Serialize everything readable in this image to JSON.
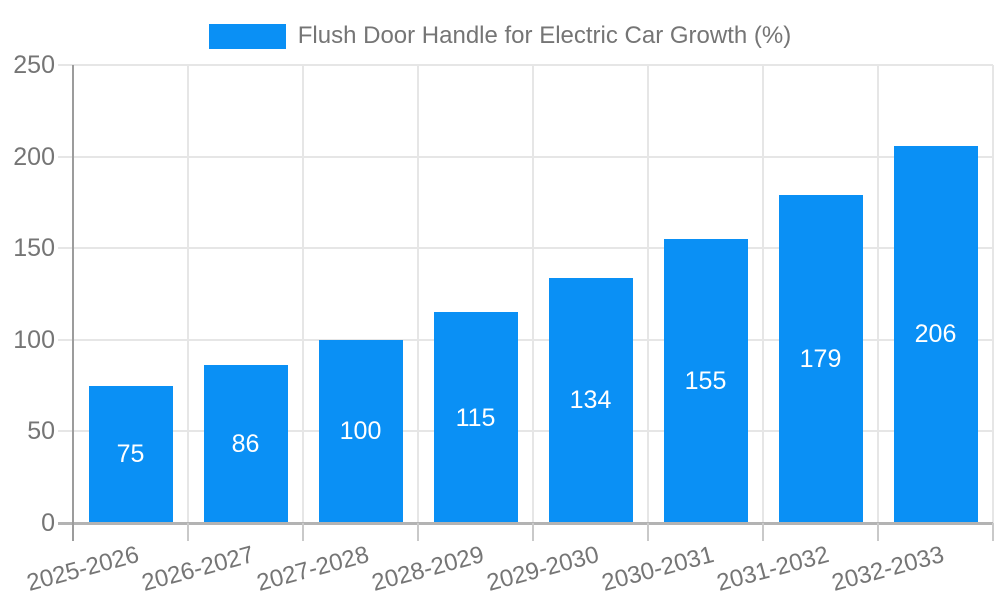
{
  "chart_data": {
    "type": "bar",
    "title": "Flush Door Handle for Electric Car Growth (%)",
    "categories": [
      "2025-2026",
      "2026-2027",
      "2027-2028",
      "2028-2029",
      "2029-2030",
      "2030-2031",
      "2031-2032",
      "2032-2033"
    ],
    "values": [
      75,
      86,
      100,
      115,
      134,
      155,
      179,
      206
    ],
    "xlabel": "",
    "ylabel": "",
    "ylim": [
      0,
      250
    ],
    "yticks": [
      0,
      50,
      100,
      150,
      200,
      250
    ],
    "grid": true,
    "legend_position": "top",
    "bar_labels_inside": true
  },
  "legend": {
    "label": "Flush Door Handle for Electric Car Growth (%)"
  },
  "colors": {
    "bar": "#0a90f5",
    "axis_text": "#757575",
    "value_text": "#ffffff",
    "gridline": "#e6e6e6",
    "baseline": "#b3b3b3",
    "y_axis_line": "#9c9c9c",
    "tick": "#c9c9c9",
    "background": "#ffffff"
  }
}
